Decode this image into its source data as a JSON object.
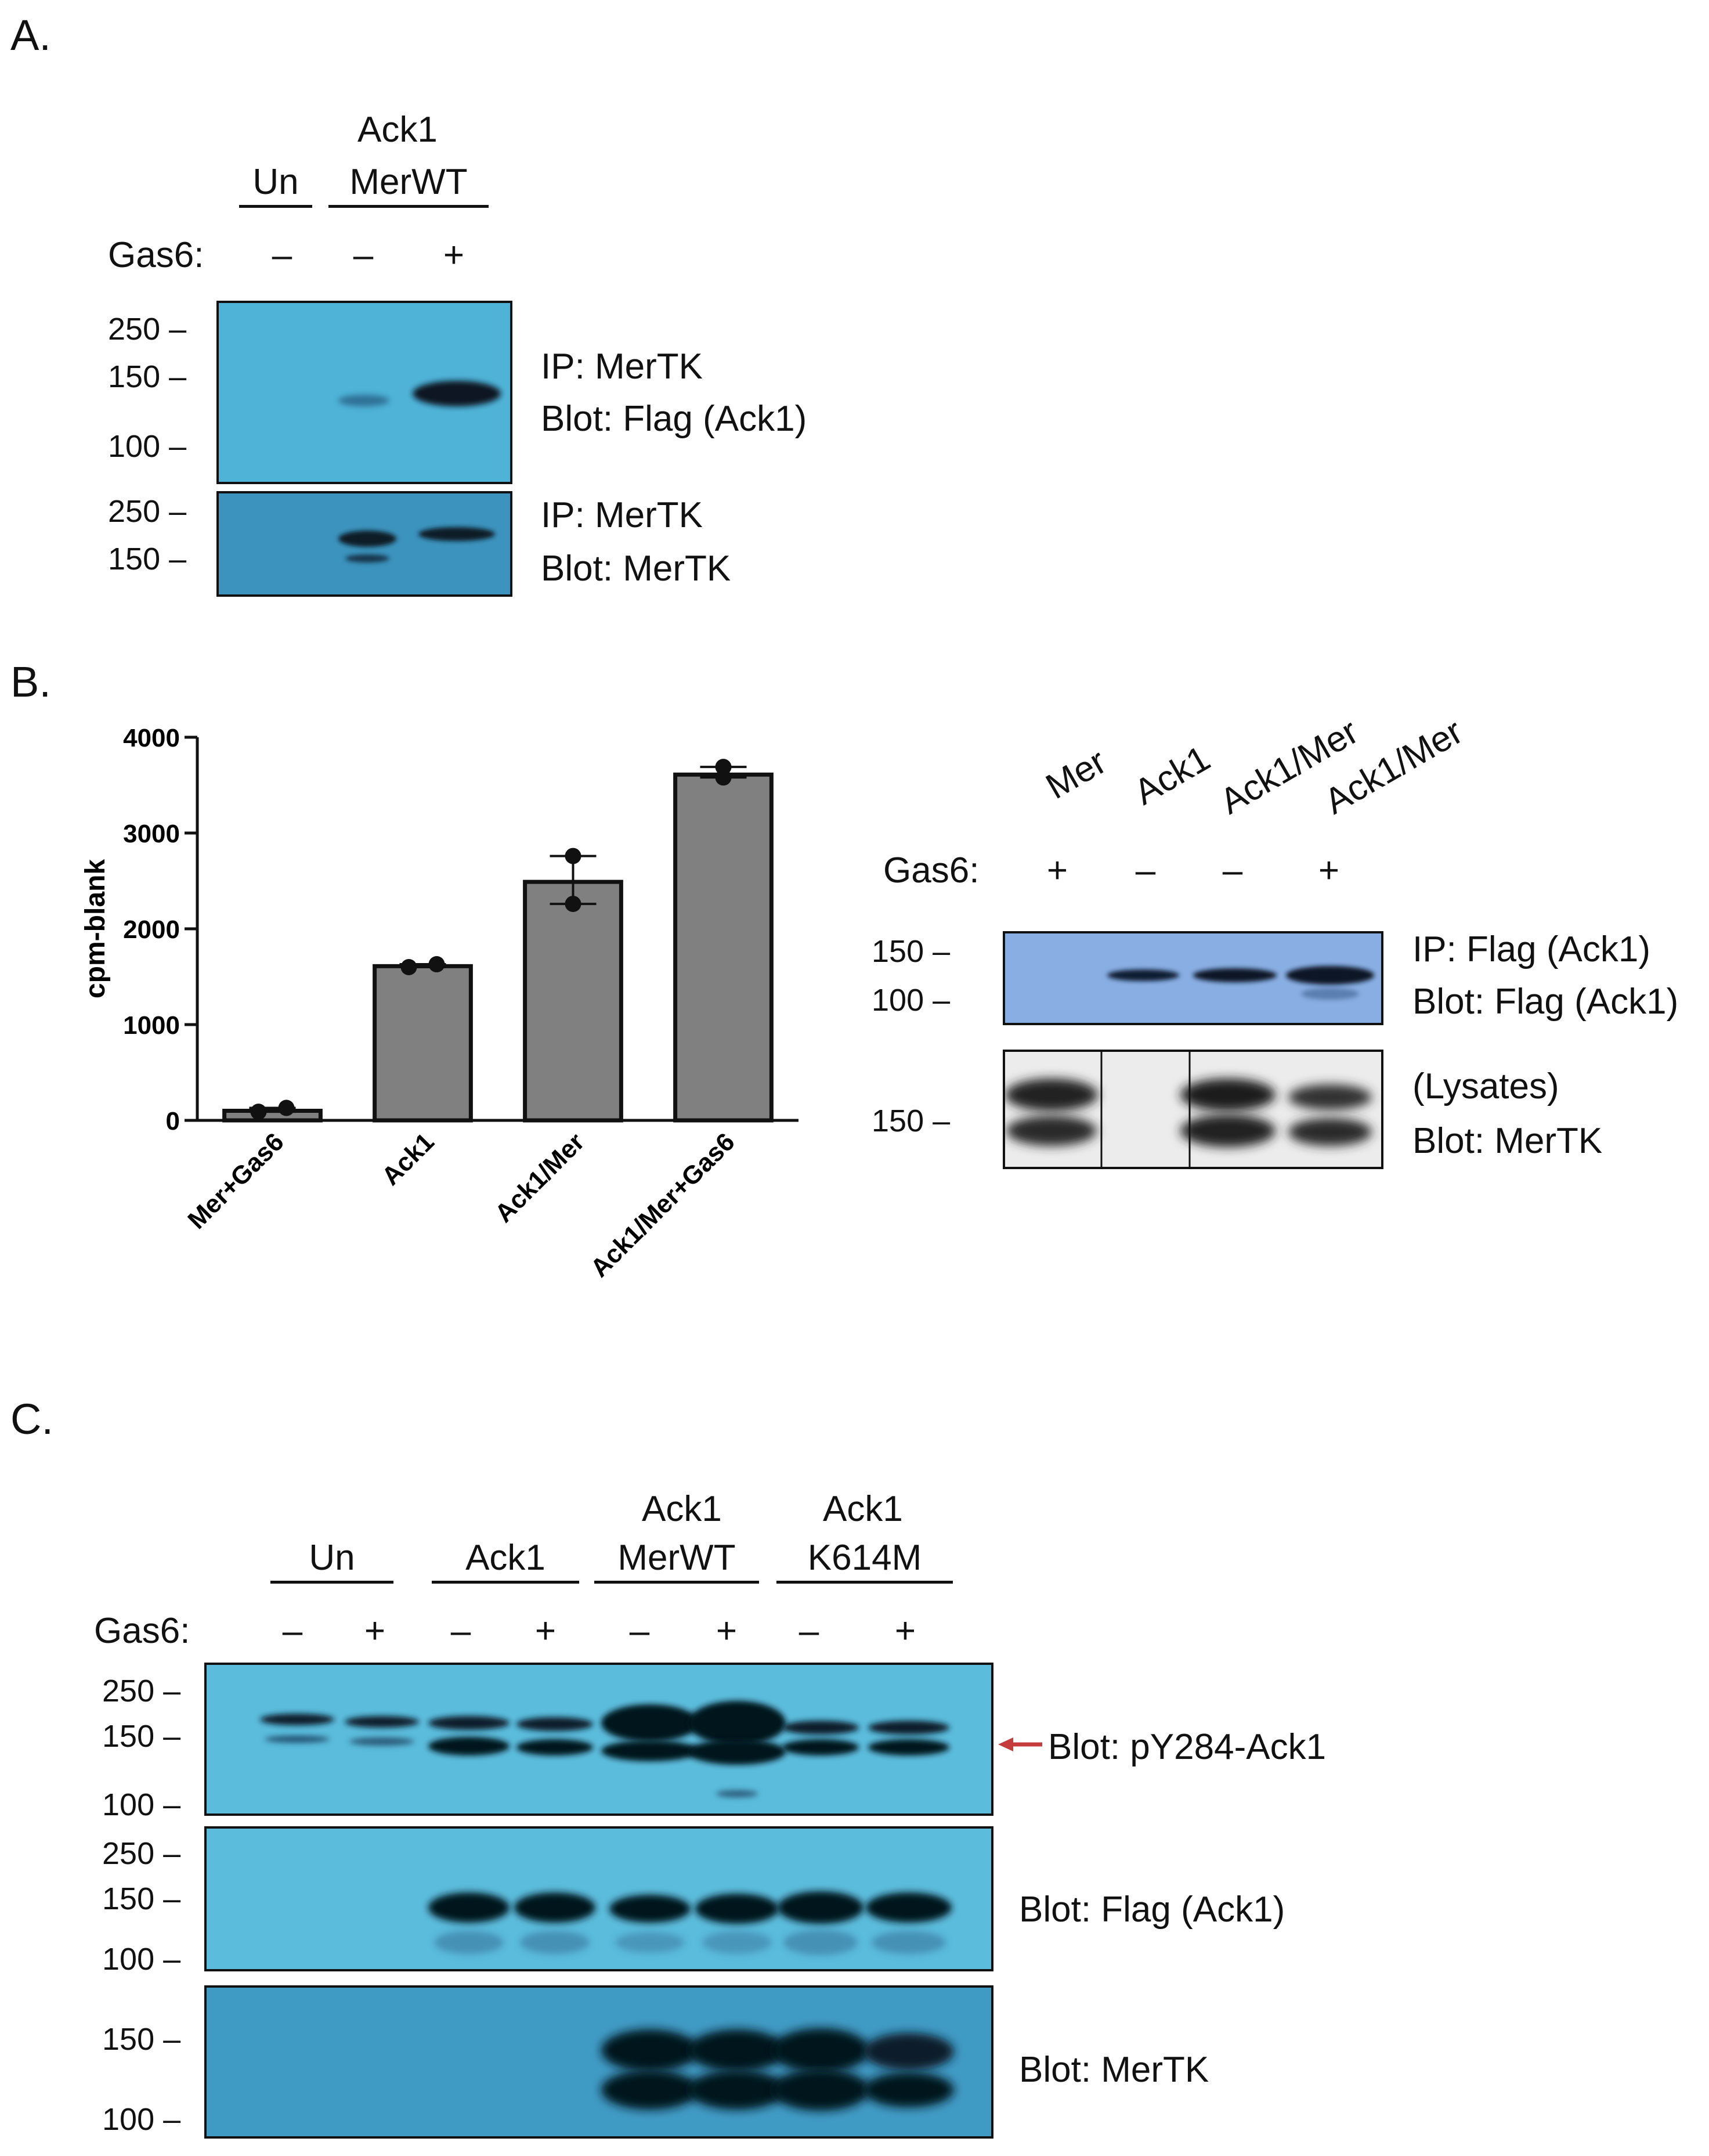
{
  "panel_a": {
    "letter": "A.",
    "group_un": "Un",
    "group_ack1_top": "Ack1",
    "group_ack1_bottom": "MerWT",
    "gas6_label": "Gas6:",
    "gas6_signs": [
      "–",
      "–",
      "+"
    ],
    "blot1": {
      "markers": [
        "250 –",
        "150 –",
        "100 –"
      ],
      "label_line1": "IP: MerTK",
      "label_line2": "Blot: Flag (Ack1)",
      "bg_color": "#4fb3d8"
    },
    "blot2": {
      "markers": [
        "250 –",
        "150 –"
      ],
      "label_line1": "IP: MerTK",
      "label_line2": "Blot: MerTK",
      "bg_color": "#3c93bd"
    }
  },
  "panel_b": {
    "letter": "B.",
    "blot_lanes": [
      "Mer",
      "Ack1",
      "Ack1/Mer",
      "Ack1/Mer"
    ],
    "gas6_label": "Gas6:",
    "gas6_signs": [
      "+",
      "–",
      "–",
      "+"
    ],
    "blot1": {
      "markers": [
        "150 –",
        "100 –"
      ],
      "label_line1": "IP: Flag (Ack1)",
      "label_line2": "Blot: Flag (Ack1)",
      "bg_color": "#89aee3"
    },
    "blot2": {
      "markers": [
        "150 –"
      ],
      "label_line1": "(Lysates)",
      "label_line2": "Blot: MerTK",
      "bg_color": "#ececec"
    }
  },
  "chart_data": {
    "type": "bar",
    "categories": [
      "Mer+Gas6",
      "Ack1",
      "Ack1/Mer",
      "Ack1/Mer+Gas6"
    ],
    "values": [
      100,
      1610,
      2490,
      3610
    ],
    "points": [
      [
        90,
        130
      ],
      [
        1600,
        1630
      ],
      [
        2760,
        2260
      ],
      [
        3580,
        3690
      ]
    ],
    "error_high": [
      130,
      1630,
      2760,
      3690
    ],
    "error_low": [
      90,
      1600,
      2260,
      3580
    ],
    "ylabel": "cpm-blank",
    "ylim": [
      0,
      4000
    ],
    "yticks": [
      "0",
      "1000",
      "2000",
      "3000",
      "4000"
    ],
    "bar_color": "#808080"
  },
  "panel_c": {
    "letter": "C.",
    "groups": [
      {
        "top": "",
        "bottom": "Un"
      },
      {
        "top": "",
        "bottom": "Ack1"
      },
      {
        "top": "Ack1",
        "bottom": "MerWT"
      },
      {
        "top": "Ack1",
        "bottom": "K614M"
      }
    ],
    "gas6_label": "Gas6:",
    "gas6_signs": [
      "–",
      "+",
      "–",
      "+",
      "–",
      "+",
      "–",
      "+"
    ],
    "blot1": {
      "markers": [
        "250 –",
        "150 –",
        "100 –"
      ],
      "label": "Blot: pY284-Ack1",
      "bg_color": "#5bbcdc"
    },
    "blot2": {
      "markers": [
        "250 –",
        "150 –",
        "100 –"
      ],
      "label": "Blot: Flag (Ack1)",
      "bg_color": "#5bbcdc"
    },
    "blot3": {
      "markers": [
        "150 –",
        "100 –"
      ],
      "label": "Blot: MerTK",
      "bg_color": "#3f9ac4"
    },
    "arrow_color": "#c43c3c"
  }
}
